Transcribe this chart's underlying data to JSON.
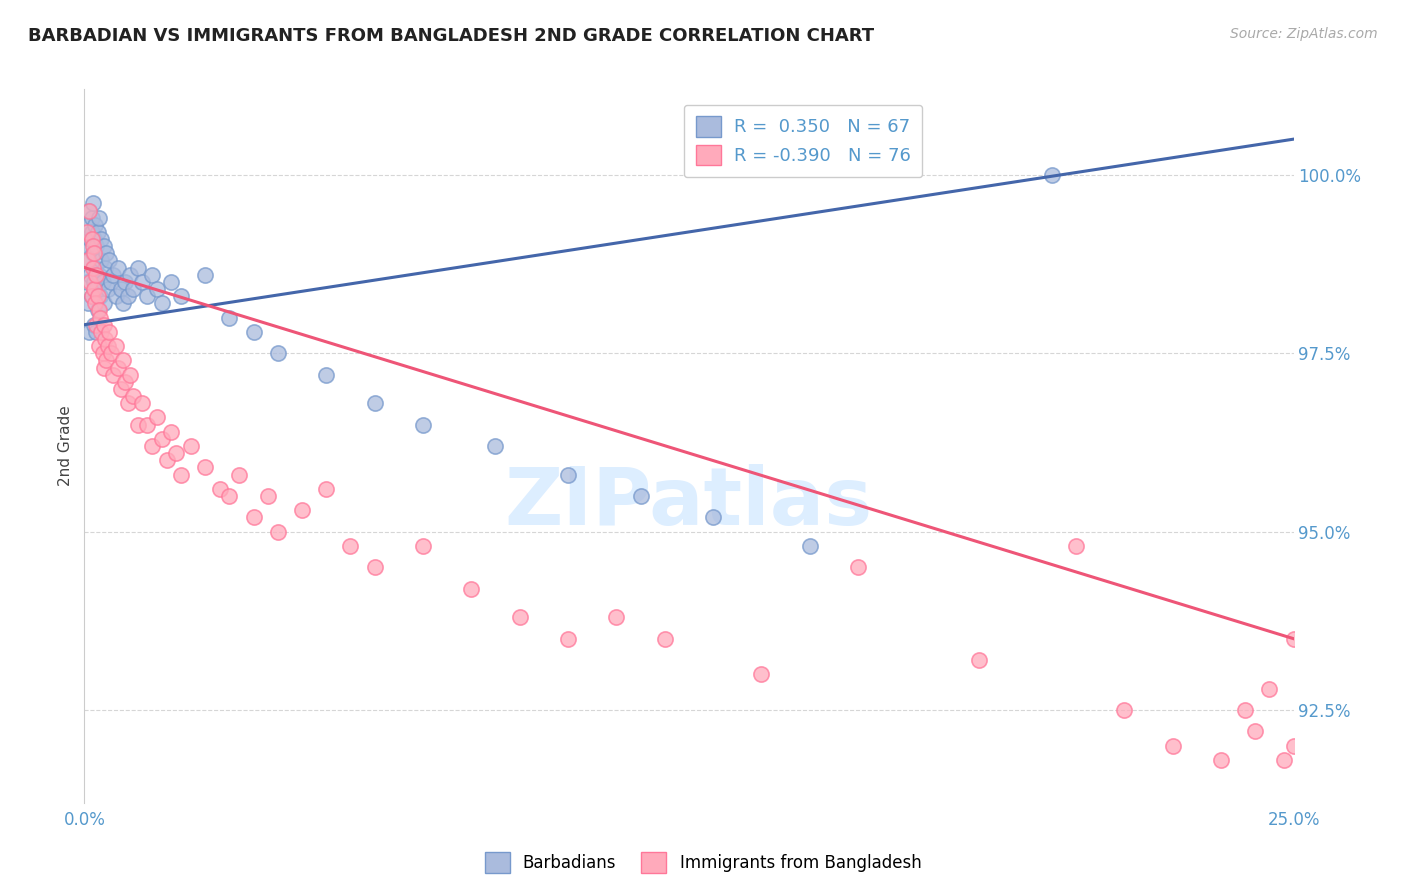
{
  "title": "BARBADIAN VS IMMIGRANTS FROM BANGLADESH 2ND GRADE CORRELATION CHART",
  "source": "Source: ZipAtlas.com",
  "ylabel": "2nd Grade",
  "ylabel_ticks": [
    "92.5%",
    "95.0%",
    "97.5%",
    "100.0%"
  ],
  "ylabel_values": [
    92.5,
    95.0,
    97.5,
    100.0
  ],
  "xmin": 0.0,
  "xmax": 25.0,
  "ymin": 91.2,
  "ymax": 101.2,
  "legend_r1": "R =  0.350",
  "legend_n1": "N = 67",
  "legend_r2": "R = -0.390",
  "legend_n2": "N = 76",
  "color_blue": "#AABBDD",
  "color_pink": "#FFAABB",
  "color_blue_edge": "#7799CC",
  "color_pink_edge": "#FF7799",
  "color_blue_line": "#4466AA",
  "color_pink_line": "#EE5577",
  "color_grid": "#CCCCCC",
  "color_title": "#222222",
  "color_source": "#AAAAAA",
  "color_axis_labels": "#5599CC",
  "watermark_color": "#DDEEFF",
  "barbadians_x": [
    0.05,
    0.05,
    0.08,
    0.08,
    0.1,
    0.1,
    0.1,
    0.12,
    0.12,
    0.15,
    0.15,
    0.15,
    0.18,
    0.18,
    0.2,
    0.2,
    0.2,
    0.22,
    0.22,
    0.25,
    0.25,
    0.25,
    0.28,
    0.28,
    0.3,
    0.3,
    0.32,
    0.35,
    0.35,
    0.38,
    0.4,
    0.4,
    0.42,
    0.45,
    0.48,
    0.5,
    0.55,
    0.6,
    0.65,
    0.7,
    0.75,
    0.8,
    0.85,
    0.9,
    0.95,
    1.0,
    1.1,
    1.2,
    1.3,
    1.4,
    1.5,
    1.6,
    1.8,
    2.0,
    2.5,
    3.0,
    3.5,
    4.0,
    5.0,
    6.0,
    7.0,
    8.5,
    10.0,
    11.5,
    13.0,
    15.0,
    20.0
  ],
  "barbadians_y": [
    98.5,
    99.0,
    98.2,
    99.3,
    98.8,
    99.5,
    97.8,
    99.1,
    98.6,
    99.4,
    98.3,
    99.2,
    98.9,
    99.6,
    98.5,
    99.1,
    97.9,
    98.7,
    99.3,
    99.0,
    98.4,
    97.8,
    99.2,
    98.1,
    98.6,
    99.4,
    98.3,
    98.8,
    99.1,
    98.5,
    98.2,
    99.0,
    98.7,
    98.9,
    98.4,
    98.8,
    98.5,
    98.6,
    98.3,
    98.7,
    98.4,
    98.2,
    98.5,
    98.3,
    98.6,
    98.4,
    98.7,
    98.5,
    98.3,
    98.6,
    98.4,
    98.2,
    98.5,
    98.3,
    98.6,
    98.0,
    97.8,
    97.5,
    97.2,
    96.8,
    96.5,
    96.2,
    95.8,
    95.5,
    95.2,
    94.8,
    100.0
  ],
  "bangladesh_x": [
    0.05,
    0.08,
    0.1,
    0.12,
    0.15,
    0.15,
    0.18,
    0.18,
    0.2,
    0.2,
    0.22,
    0.25,
    0.25,
    0.28,
    0.3,
    0.3,
    0.32,
    0.35,
    0.38,
    0.4,
    0.4,
    0.42,
    0.45,
    0.48,
    0.5,
    0.55,
    0.6,
    0.65,
    0.7,
    0.75,
    0.8,
    0.85,
    0.9,
    0.95,
    1.0,
    1.1,
    1.2,
    1.3,
    1.4,
    1.5,
    1.6,
    1.7,
    1.8,
    1.9,
    2.0,
    2.2,
    2.5,
    2.8,
    3.0,
    3.2,
    3.5,
    3.8,
    4.0,
    4.5,
    5.0,
    5.5,
    6.0,
    7.0,
    8.0,
    9.0,
    10.0,
    11.0,
    12.0,
    14.0,
    16.0,
    18.5,
    20.5,
    21.5,
    22.5,
    23.5,
    24.0,
    24.5,
    24.8,
    25.0,
    25.0,
    24.2
  ],
  "bangladesh_y": [
    99.2,
    98.8,
    99.5,
    98.5,
    99.1,
    98.3,
    98.7,
    99.0,
    98.4,
    98.9,
    98.2,
    98.6,
    97.9,
    98.3,
    98.1,
    97.6,
    98.0,
    97.8,
    97.5,
    97.9,
    97.3,
    97.7,
    97.4,
    97.6,
    97.8,
    97.5,
    97.2,
    97.6,
    97.3,
    97.0,
    97.4,
    97.1,
    96.8,
    97.2,
    96.9,
    96.5,
    96.8,
    96.5,
    96.2,
    96.6,
    96.3,
    96.0,
    96.4,
    96.1,
    95.8,
    96.2,
    95.9,
    95.6,
    95.5,
    95.8,
    95.2,
    95.5,
    95.0,
    95.3,
    95.6,
    94.8,
    94.5,
    94.8,
    94.2,
    93.8,
    93.5,
    93.8,
    93.5,
    93.0,
    94.5,
    93.2,
    94.8,
    92.5,
    92.0,
    91.8,
    92.5,
    92.8,
    91.8,
    93.5,
    92.0,
    92.2
  ]
}
